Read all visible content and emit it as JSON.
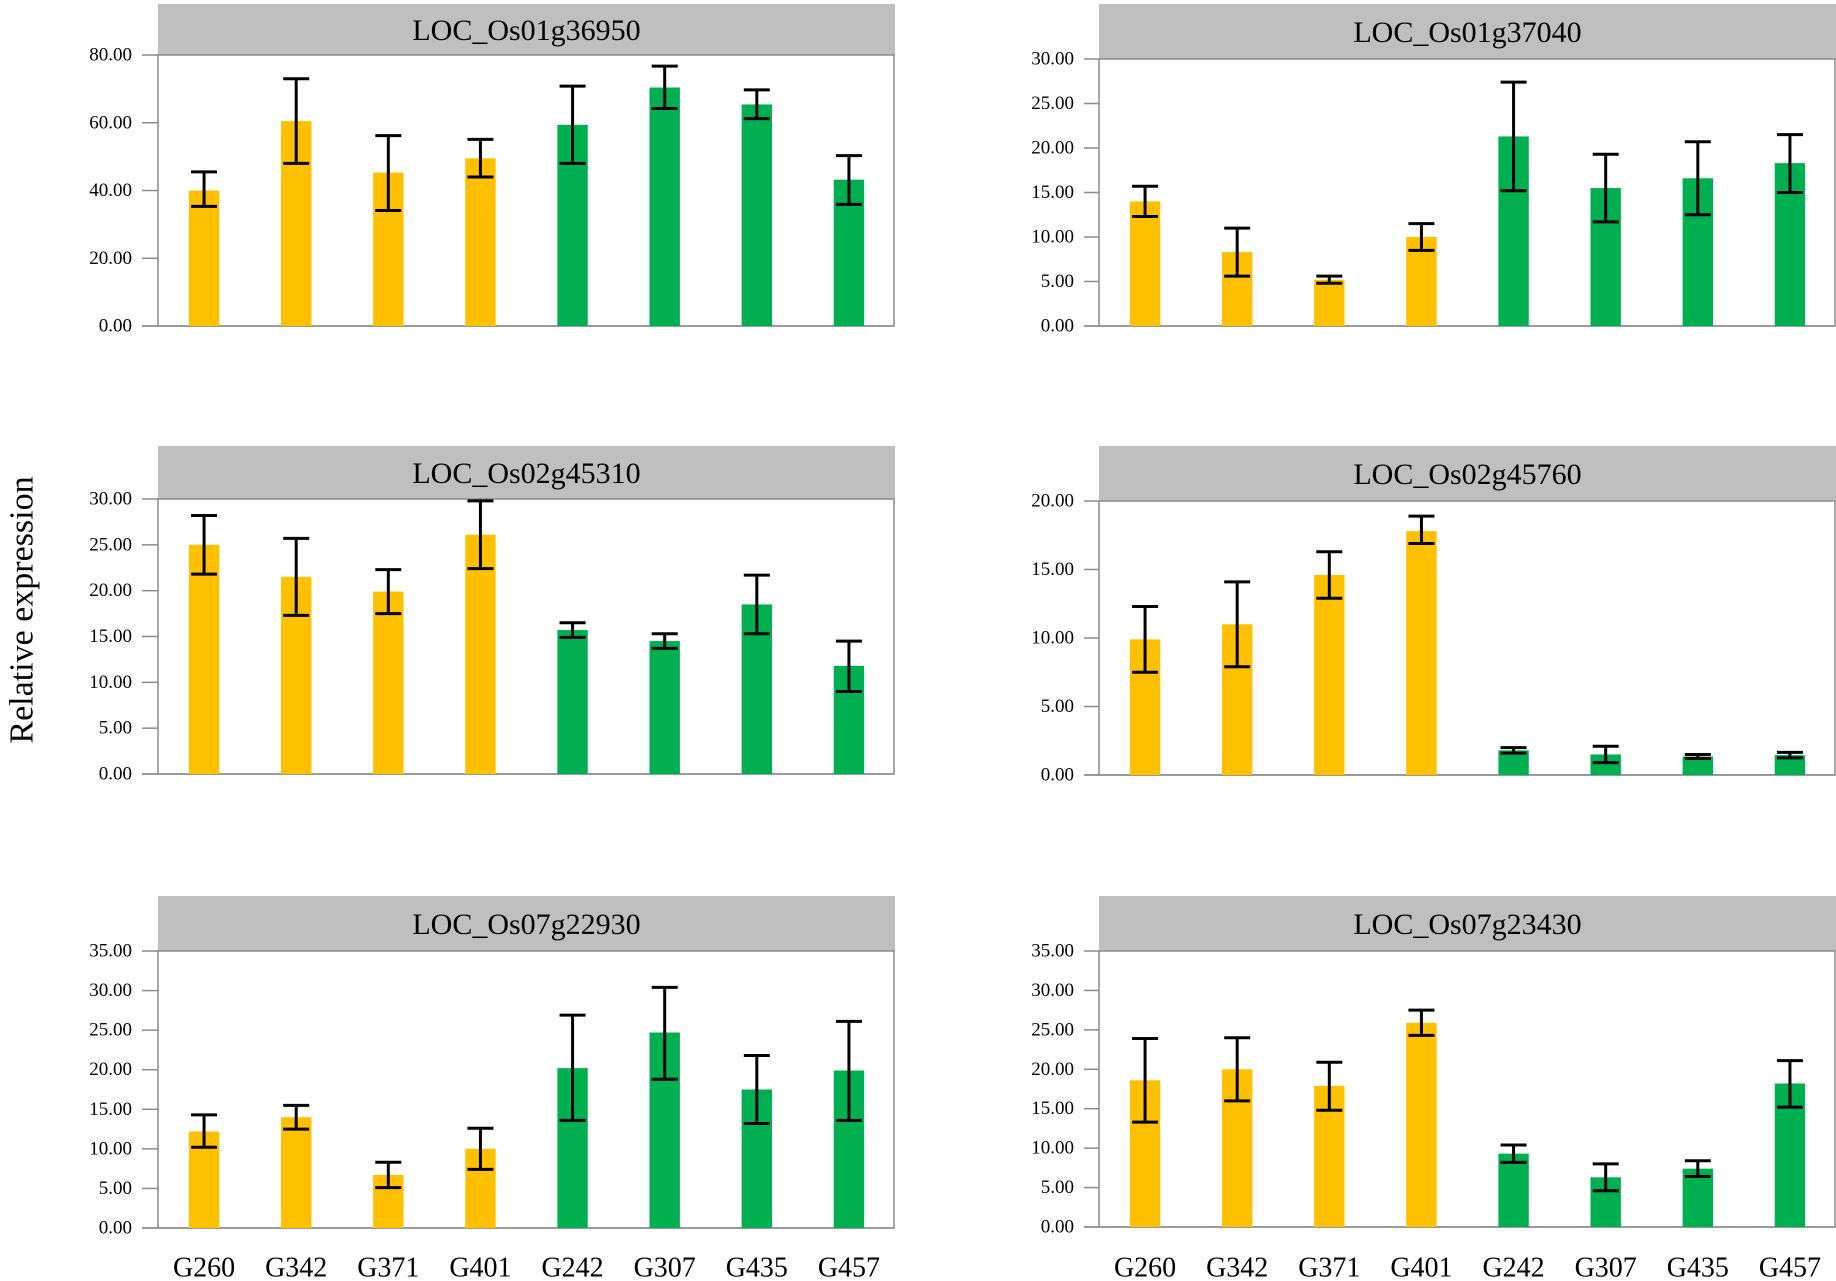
{
  "y_axis_title": "Relative expression",
  "colors": {
    "group_a": "#ffc000",
    "group_b": "#00b050",
    "header": "#bfbfbf",
    "error_bar": "#000000",
    "frame": "#8c8c8c"
  },
  "chart_data": [
    {
      "type": "bar",
      "title": "LOC_Os01g36950",
      "xlabel": "",
      "ylabel": "Relative expression",
      "categories": [
        "G260",
        "G342",
        "G371",
        "G401",
        "G242",
        "G307",
        "G435",
        "G457"
      ],
      "values": [
        40.0,
        60.5,
        45.3,
        49.5,
        59.4,
        70.4,
        65.4,
        43.2
      ],
      "error_low": [
        35.3,
        48.0,
        34.1,
        44.0,
        48.0,
        64.2,
        61.2,
        35.9
      ],
      "error_high": [
        45.5,
        73.0,
        56.2,
        55.1,
        70.8,
        76.7,
        69.7,
        50.3
      ],
      "group": [
        "a",
        "a",
        "a",
        "a",
        "b",
        "b",
        "b",
        "b"
      ],
      "ylim": [
        0,
        80
      ],
      "ytick_labels": [
        "0.00",
        "20.00",
        "40.00",
        "60.00",
        "80.00"
      ]
    },
    {
      "type": "bar",
      "title": "LOC_Os01g37040",
      "xlabel": "",
      "ylabel": "Relative expression",
      "categories": [
        "G260",
        "G342",
        "G371",
        "G401",
        "G242",
        "G307",
        "G435",
        "G457"
      ],
      "values": [
        14.0,
        8.3,
        5.2,
        10.0,
        21.3,
        15.5,
        16.6,
        18.3
      ],
      "error_low": [
        12.3,
        5.6,
        4.8,
        8.5,
        15.2,
        11.7,
        12.5,
        15.0
      ],
      "error_high": [
        15.7,
        11.0,
        5.6,
        11.5,
        27.4,
        19.3,
        20.7,
        21.5
      ],
      "group": [
        "a",
        "a",
        "a",
        "a",
        "b",
        "b",
        "b",
        "b"
      ],
      "ylim": [
        0,
        30
      ],
      "ytick_labels": [
        "0.00",
        "5.00",
        "10.00",
        "15.00",
        "20.00",
        "25.00",
        "30.00"
      ]
    },
    {
      "type": "bar",
      "title": "LOC_Os02g45310",
      "xlabel": "",
      "ylabel": "Relative expression",
      "categories": [
        "G260",
        "G342",
        "G371",
        "G401",
        "G242",
        "G307",
        "G435",
        "G457"
      ],
      "values": [
        25.0,
        21.5,
        19.9,
        26.1,
        15.7,
        14.5,
        18.5,
        11.8
      ],
      "error_low": [
        21.8,
        17.3,
        17.5,
        22.4,
        14.9,
        13.7,
        15.3,
        9.0
      ],
      "error_high": [
        28.2,
        25.7,
        22.3,
        29.8,
        16.5,
        15.3,
        21.7,
        14.5
      ],
      "group": [
        "a",
        "a",
        "a",
        "a",
        "b",
        "b",
        "b",
        "b"
      ],
      "ylim": [
        0,
        30
      ],
      "ytick_labels": [
        "0.00",
        "5.00",
        "10.00",
        "15.00",
        "20.00",
        "25.00",
        "30.00"
      ]
    },
    {
      "type": "bar",
      "title": "LOC_Os02g45760",
      "xlabel": "",
      "ylabel": "Relative expression",
      "categories": [
        "G260",
        "G342",
        "G371",
        "G401",
        "G242",
        "G307",
        "G435",
        "G457"
      ],
      "values": [
        9.9,
        11.0,
        14.6,
        17.8,
        1.8,
        1.5,
        1.35,
        1.45
      ],
      "error_low": [
        7.5,
        7.9,
        12.9,
        16.9,
        1.6,
        0.9,
        1.2,
        1.25
      ],
      "error_high": [
        12.3,
        14.1,
        16.3,
        18.9,
        2.0,
        2.1,
        1.5,
        1.65
      ],
      "group": [
        "a",
        "a",
        "a",
        "a",
        "b",
        "b",
        "b",
        "b"
      ],
      "ylim": [
        0,
        20
      ],
      "ytick_labels": [
        "0.00",
        "5.00",
        "10.00",
        "15.00",
        "20.00"
      ]
    },
    {
      "type": "bar",
      "title": "LOC_Os07g22930",
      "xlabel": "",
      "ylabel": "Relative expression",
      "categories": [
        "G260",
        "G342",
        "G371",
        "G401",
        "G242",
        "G307",
        "G435",
        "G457"
      ],
      "values": [
        12.2,
        14.0,
        6.7,
        10.0,
        20.2,
        24.7,
        17.5,
        19.9
      ],
      "error_low": [
        10.2,
        12.5,
        5.1,
        7.4,
        13.6,
        18.8,
        13.2,
        13.6
      ],
      "error_high": [
        14.3,
        15.5,
        8.3,
        12.6,
        26.9,
        30.4,
        21.8,
        26.1
      ],
      "group": [
        "a",
        "a",
        "a",
        "a",
        "b",
        "b",
        "b",
        "b"
      ],
      "ylim": [
        0,
        35
      ],
      "ytick_labels": [
        "0.00",
        "5.00",
        "10.00",
        "15.00",
        "20.00",
        "25.00",
        "30.00",
        "35.00"
      ]
    },
    {
      "type": "bar",
      "title": "LOC_Os07g23430",
      "xlabel": "",
      "ylabel": "Relative expression",
      "categories": [
        "G260",
        "G342",
        "G371",
        "G401",
        "G242",
        "G307",
        "G435",
        "G457"
      ],
      "values": [
        18.6,
        20.0,
        17.9,
        25.9,
        9.3,
        6.3,
        7.4,
        18.2
      ],
      "error_low": [
        13.3,
        16.0,
        14.8,
        24.3,
        8.2,
        4.6,
        6.4,
        15.2
      ],
      "error_high": [
        23.9,
        24.0,
        20.9,
        27.5,
        10.4,
        8.0,
        8.4,
        21.1
      ],
      "group": [
        "a",
        "a",
        "a",
        "a",
        "b",
        "b",
        "b",
        "b"
      ],
      "ylim": [
        0,
        35
      ],
      "ytick_labels": [
        "0.00",
        "5.00",
        "10.00",
        "15.00",
        "20.00",
        "25.00",
        "30.00",
        "35.00"
      ]
    }
  ]
}
